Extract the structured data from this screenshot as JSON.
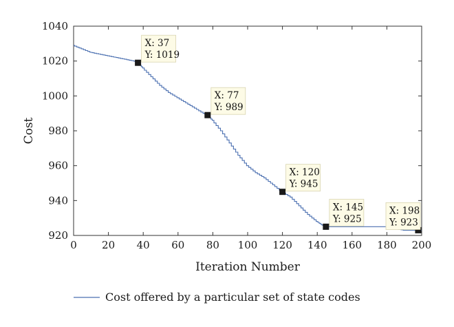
{
  "chart_data": {
    "type": "line",
    "xlabel": "Iteration Number",
    "ylabel": "Cost",
    "xlim": [
      0,
      200
    ],
    "ylim": [
      920,
      1040
    ],
    "xticks": [
      0,
      20,
      40,
      60,
      80,
      100,
      120,
      140,
      160,
      180,
      200
    ],
    "yticks": [
      920,
      940,
      960,
      980,
      1000,
      1020,
      1040
    ],
    "grid": false,
    "legend_position": "bottom",
    "series": [
      {
        "name": "Cost offered by a particular set of state codes",
        "color": "#4a6fb0",
        "x": [
          0,
          5,
          10,
          15,
          20,
          25,
          30,
          35,
          37,
          40,
          45,
          50,
          55,
          60,
          65,
          70,
          75,
          77,
          80,
          85,
          90,
          95,
          100,
          105,
          110,
          115,
          120,
          125,
          130,
          135,
          140,
          143,
          145,
          150,
          160,
          170,
          180,
          185,
          190,
          198,
          200
        ],
        "y": [
          1029,
          1027,
          1025,
          1024,
          1023,
          1022,
          1021,
          1020,
          1019,
          1016,
          1011,
          1006,
          1002,
          999,
          996,
          993,
          990,
          989,
          986,
          980,
          973,
          966,
          960,
          956,
          953,
          949,
          945,
          942,
          937,
          932,
          928,
          926,
          925,
          925,
          925,
          925,
          925,
          924,
          923,
          923,
          923
        ]
      }
    ],
    "datatips": [
      {
        "x": 37,
        "y": 1019,
        "line1": "X: 37",
        "line2": "Y: 1019"
      },
      {
        "x": 77,
        "y": 989,
        "line1": "X: 77",
        "line2": "Y: 989"
      },
      {
        "x": 120,
        "y": 945,
        "line1": "X: 120",
        "line2": "Y: 945"
      },
      {
        "x": 145,
        "y": 925,
        "line1": "X: 145",
        "line2": "Y: 925"
      },
      {
        "x": 198,
        "y": 923,
        "line1": "X: 198",
        "line2": "Y: 923"
      }
    ]
  }
}
